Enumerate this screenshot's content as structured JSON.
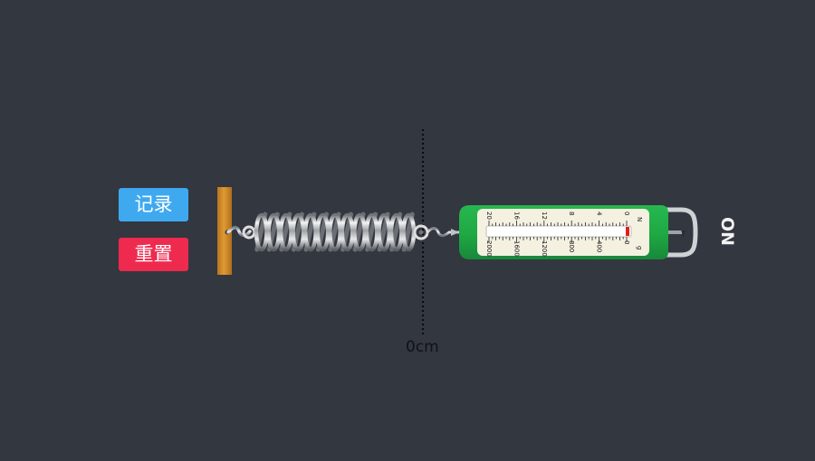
{
  "buttons": {
    "record_label": "记录",
    "reset_label": "重置"
  },
  "ruler": {
    "zero_label": "0cm"
  },
  "meter": {
    "unit_toggle_label": "ON",
    "newton_unit": "N",
    "gram_unit": "g",
    "top_scale": [
      "20",
      "16",
      "12",
      "8",
      "4",
      "0"
    ],
    "bottom_scale": [
      "2000",
      "1600",
      "1200",
      "800",
      "400",
      "0"
    ],
    "reading_newtons": 0
  },
  "colors": {
    "background": "#333740",
    "record_button": "#3fa9f0",
    "reset_button": "#ee2a4e",
    "wall": "#d8902c",
    "meter_body": "#1fa843",
    "meter_face": "#f4f1e1",
    "indicator": "#e0201f",
    "text_light": "#f2f2f2",
    "text_dark": "#101215",
    "guide_line": "#0a0a0a"
  }
}
